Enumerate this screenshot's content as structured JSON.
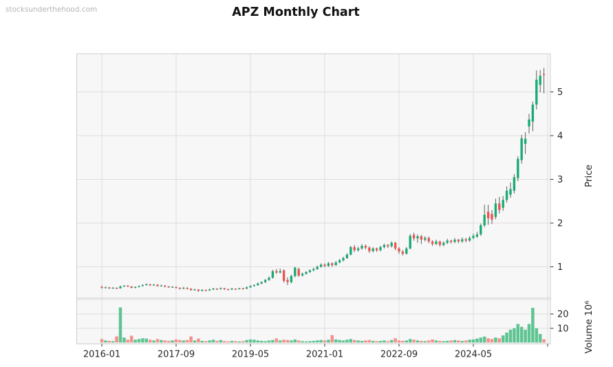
{
  "header": {
    "watermark": "stocksunderthehood.com",
    "title": "APZ Monthly Chart"
  },
  "chart_data": {
    "type": "candlestick",
    "title": "APZ Monthly Chart",
    "grid": true,
    "legend_position": "none",
    "x_axis": {
      "tick_labels": [
        "2016-01",
        "2017-09",
        "2019-05",
        "2021-01",
        "2022-09",
        "2024-05"
      ],
      "tick_month_indices": [
        0,
        20,
        40,
        60,
        80,
        100
      ],
      "extra_unlabeled_tick_index": 120
    },
    "price_axis": {
      "label": "Price",
      "side": "right",
      "tick_values": [
        1,
        2,
        3,
        4,
        5
      ],
      "range": [
        0.28,
        5.87
      ]
    },
    "volume_axis": {
      "label": "Volume  10⁶",
      "side": "right",
      "tick_values": [
        10,
        20
      ],
      "grid_values": [
        10,
        20,
        30
      ],
      "unit": "millions",
      "range": [
        0,
        32
      ]
    },
    "colors": {
      "up": "#1aab74",
      "down": "#ef5350",
      "wick": "#5c5c5c",
      "volume_up": "#5ec492",
      "volume_down": "#f2928b",
      "panel_background": "#f7f7f7",
      "gridline": "#dedede",
      "spine": "#cccccc",
      "tick_text": "#262626"
    },
    "months": [
      "2016-01",
      "2016-02",
      "2016-03",
      "2016-04",
      "2016-05",
      "2016-06",
      "2016-07",
      "2016-08",
      "2016-09",
      "2016-10",
      "2016-11",
      "2016-12",
      "2017-01",
      "2017-02",
      "2017-03",
      "2017-04",
      "2017-05",
      "2017-06",
      "2017-07",
      "2017-08",
      "2017-09",
      "2017-10",
      "2017-11",
      "2017-12",
      "2018-01",
      "2018-02",
      "2018-03",
      "2018-04",
      "2018-05",
      "2018-06",
      "2018-07",
      "2018-08",
      "2018-09",
      "2018-10",
      "2018-11",
      "2018-12",
      "2019-01",
      "2019-02",
      "2019-03",
      "2019-04",
      "2019-05",
      "2019-06",
      "2019-07",
      "2019-08",
      "2019-09",
      "2019-10",
      "2019-11",
      "2019-12",
      "2020-01",
      "2020-02",
      "2020-03",
      "2020-04",
      "2020-05",
      "2020-06",
      "2020-07",
      "2020-08",
      "2020-09",
      "2020-10",
      "2020-11",
      "2020-12",
      "2021-01",
      "2021-02",
      "2021-03",
      "2021-04",
      "2021-05",
      "2021-06",
      "2021-07",
      "2021-08",
      "2021-09",
      "2021-10",
      "2021-11",
      "2021-12",
      "2022-01",
      "2022-02",
      "2022-03",
      "2022-04",
      "2022-05",
      "2022-06",
      "2022-07",
      "2022-08",
      "2022-09",
      "2022-10",
      "2022-11",
      "2022-12",
      "2023-01",
      "2023-02",
      "2023-03",
      "2023-04",
      "2023-05",
      "2023-06",
      "2023-07",
      "2023-08",
      "2023-09",
      "2023-10",
      "2023-11",
      "2023-12",
      "2024-01",
      "2024-02",
      "2024-03",
      "2024-04",
      "2024-05",
      "2024-06",
      "2024-07",
      "2024-08",
      "2024-09",
      "2024-10",
      "2024-11",
      "2024-12",
      "2025-01",
      "2025-02",
      "2025-03",
      "2025-04",
      "2025-05",
      "2025-06",
      "2025-07",
      "2025-08",
      "2025-09",
      "2025-10",
      "2025-11",
      "2025-12"
    ],
    "open": [
      0.54,
      0.52,
      0.53,
      0.51,
      0.52,
      0.51,
      0.55,
      0.57,
      0.55,
      0.52,
      0.54,
      0.56,
      0.58,
      0.6,
      0.58,
      0.59,
      0.56,
      0.57,
      0.55,
      0.53,
      0.54,
      0.52,
      0.5,
      0.52,
      0.5,
      0.47,
      0.48,
      0.45,
      0.47,
      0.46,
      0.48,
      0.5,
      0.49,
      0.51,
      0.49,
      0.48,
      0.5,
      0.49,
      0.51,
      0.5,
      0.53,
      0.56,
      0.58,
      0.62,
      0.65,
      0.7,
      0.75,
      0.9,
      0.87,
      0.92,
      0.7,
      0.65,
      0.79,
      0.95,
      0.8,
      0.84,
      0.88,
      0.92,
      0.95,
      1.0,
      1.05,
      1.02,
      1.08,
      1.04,
      1.1,
      1.15,
      1.2,
      1.28,
      1.45,
      1.38,
      1.42,
      1.48,
      1.44,
      1.36,
      1.42,
      1.38,
      1.45,
      1.5,
      1.47,
      1.55,
      1.42,
      1.35,
      1.3,
      1.42,
      1.73,
      1.65,
      1.7,
      1.62,
      1.66,
      1.58,
      1.52,
      1.58,
      1.5,
      1.55,
      1.6,
      1.57,
      1.62,
      1.58,
      1.63,
      1.6,
      1.66,
      1.69,
      1.74,
      1.95,
      2.26,
      2.21,
      2.14,
      2.45,
      2.35,
      2.53,
      2.65,
      2.74,
      3.03,
      3.44,
      3.81,
      4.21,
      4.32,
      4.71,
      5.16,
      5.41
    ],
    "high": [
      0.57,
      0.55,
      0.54,
      0.54,
      0.53,
      0.57,
      0.58,
      0.58,
      0.56,
      0.55,
      0.57,
      0.6,
      0.62,
      0.61,
      0.61,
      0.6,
      0.59,
      0.58,
      0.56,
      0.56,
      0.55,
      0.53,
      0.54,
      0.53,
      0.51,
      0.5,
      0.49,
      0.49,
      0.48,
      0.5,
      0.52,
      0.51,
      0.53,
      0.52,
      0.5,
      0.52,
      0.51,
      0.52,
      0.52,
      0.55,
      0.58,
      0.6,
      0.64,
      0.67,
      0.72,
      0.78,
      0.93,
      0.95,
      0.96,
      0.94,
      0.76,
      0.82,
      1.0,
      0.98,
      0.87,
      0.9,
      0.94,
      0.98,
      1.03,
      1.08,
      1.08,
      1.11,
      1.1,
      1.13,
      1.18,
      1.23,
      1.31,
      1.48,
      1.5,
      1.46,
      1.52,
      1.51,
      1.47,
      1.45,
      1.44,
      1.48,
      1.53,
      1.52,
      1.58,
      1.57,
      1.45,
      1.38,
      1.45,
      1.75,
      1.78,
      1.74,
      1.73,
      1.7,
      1.69,
      1.61,
      1.62,
      1.6,
      1.58,
      1.64,
      1.62,
      1.66,
      1.64,
      1.67,
      1.66,
      1.7,
      1.76,
      1.8,
      1.99,
      2.42,
      2.42,
      2.3,
      2.56,
      2.6,
      2.62,
      2.84,
      2.93,
      3.12,
      3.53,
      4.02,
      4.08,
      4.5,
      4.78,
      5.49,
      5.5,
      5.55
    ],
    "low": [
      0.5,
      0.51,
      0.49,
      0.5,
      0.49,
      0.5,
      0.54,
      0.54,
      0.51,
      0.51,
      0.53,
      0.55,
      0.57,
      0.56,
      0.57,
      0.55,
      0.55,
      0.53,
      0.52,
      0.52,
      0.5,
      0.48,
      0.49,
      0.48,
      0.45,
      0.46,
      0.43,
      0.44,
      0.44,
      0.45,
      0.47,
      0.47,
      0.48,
      0.47,
      0.46,
      0.47,
      0.47,
      0.48,
      0.48,
      0.49,
      0.52,
      0.55,
      0.57,
      0.6,
      0.63,
      0.68,
      0.73,
      0.84,
      0.85,
      0.64,
      0.58,
      0.62,
      0.76,
      0.77,
      0.78,
      0.82,
      0.86,
      0.9,
      0.93,
      0.98,
      0.99,
      1.0,
      1.0,
      1.02,
      1.08,
      1.12,
      1.18,
      1.26,
      1.34,
      1.35,
      1.39,
      1.4,
      1.32,
      1.33,
      1.34,
      1.35,
      1.42,
      1.43,
      1.44,
      1.38,
      1.3,
      1.26,
      1.28,
      1.4,
      1.6,
      1.55,
      1.52,
      1.58,
      1.54,
      1.48,
      1.5,
      1.46,
      1.47,
      1.52,
      1.53,
      1.54,
      1.54,
      1.55,
      1.56,
      1.57,
      1.63,
      1.66,
      1.71,
      1.91,
      1.96,
      1.98,
      2.09,
      2.22,
      2.28,
      2.47,
      2.58,
      2.68,
      2.96,
      3.36,
      3.58,
      4.05,
      4.1,
      4.6,
      4.99,
      4.97
    ],
    "close": [
      0.52,
      0.53,
      0.51,
      0.52,
      0.51,
      0.55,
      0.57,
      0.55,
      0.52,
      0.54,
      0.56,
      0.58,
      0.6,
      0.58,
      0.59,
      0.56,
      0.57,
      0.55,
      0.53,
      0.54,
      0.52,
      0.5,
      0.52,
      0.5,
      0.47,
      0.48,
      0.45,
      0.47,
      0.46,
      0.48,
      0.5,
      0.49,
      0.51,
      0.49,
      0.48,
      0.5,
      0.49,
      0.51,
      0.5,
      0.53,
      0.56,
      0.58,
      0.62,
      0.65,
      0.7,
      0.75,
      0.9,
      0.87,
      0.9,
      0.68,
      0.65,
      0.79,
      0.98,
      0.8,
      0.84,
      0.88,
      0.92,
      0.95,
      1.0,
      1.05,
      1.02,
      1.08,
      1.04,
      1.1,
      1.15,
      1.2,
      1.28,
      1.45,
      1.38,
      1.42,
      1.48,
      1.44,
      1.36,
      1.42,
      1.38,
      1.45,
      1.5,
      1.47,
      1.55,
      1.42,
      1.35,
      1.3,
      1.42,
      1.71,
      1.65,
      1.7,
      1.62,
      1.66,
      1.58,
      1.52,
      1.58,
      1.5,
      1.55,
      1.6,
      1.57,
      1.62,
      1.58,
      1.63,
      1.6,
      1.66,
      1.71,
      1.74,
      1.95,
      2.19,
      2.11,
      2.08,
      2.45,
      2.3,
      2.53,
      2.74,
      2.78,
      3.05,
      3.47,
      3.94,
      3.93,
      4.37,
      4.71,
      5.28,
      5.37,
      5.39
    ],
    "volume_millions": [
      2.5,
      1.5,
      1.2,
      1.0,
      4.3,
      24.6,
      3.5,
      2.0,
      4.8,
      2.0,
      2.5,
      3.0,
      2.8,
      2.0,
      1.5,
      2.5,
      1.8,
      1.5,
      1.2,
      1.5,
      2.2,
      1.8,
      1.5,
      1.8,
      4.3,
      1.5,
      2.8,
      1.2,
      1.0,
      1.5,
      2.0,
      1.2,
      1.8,
      1.0,
      0.8,
      1.2,
      1.0,
      0.8,
      1.0,
      1.8,
      2.2,
      2.0,
      1.5,
      1.2,
      1.0,
      1.5,
      1.8,
      2.9,
      1.5,
      2.0,
      1.8,
      1.5,
      2.2,
      1.5,
      1.0,
      0.8,
      1.0,
      1.2,
      1.5,
      1.8,
      1.5,
      2.0,
      5.2,
      2.2,
      1.8,
      1.5,
      2.0,
      2.5,
      1.8,
      1.5,
      1.2,
      1.5,
      1.8,
      1.2,
      1.0,
      1.2,
      1.5,
      1.0,
      1.8,
      3.0,
      1.5,
      1.2,
      1.5,
      2.5,
      2.0,
      1.5,
      1.2,
      1.0,
      1.5,
      2.2,
      1.5,
      1.2,
      1.0,
      1.2,
      1.5,
      1.8,
      1.5,
      1.2,
      1.5,
      2.0,
      2.2,
      2.8,
      3.5,
      4.2,
      3.0,
      2.5,
      3.5,
      3.0,
      5.0,
      7.0,
      9.0,
      10.0,
      13.0,
      11.0,
      9.0,
      13.0,
      24.3,
      10.0,
      6.0,
      2.3
    ]
  }
}
